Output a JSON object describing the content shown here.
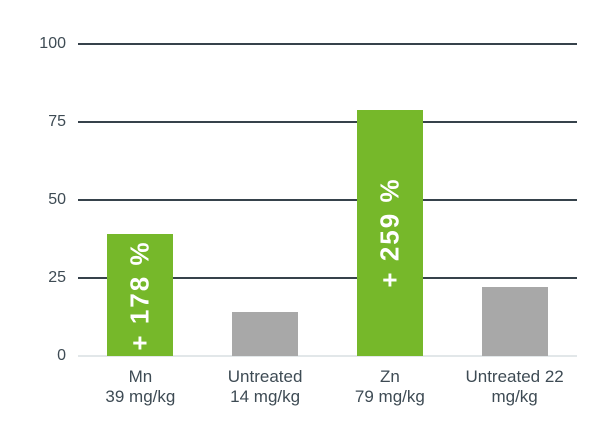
{
  "chart_data": {
    "type": "bar",
    "categories": [
      "Mn\n39 mg/kg",
      "Untreated\n14 mg/kg",
      "Zn\n79 mg/kg",
      "Untreated 22\nmg/kg"
    ],
    "values": [
      39,
      14,
      79,
      22
    ],
    "bar_annotations": [
      "+ 178 %",
      "",
      "+ 259 %",
      ""
    ],
    "bar_color_keys": [
      "green",
      "gray",
      "green",
      "gray"
    ],
    "yticks": [
      100,
      75,
      50,
      25,
      0
    ],
    "ylim": [
      0,
      100
    ],
    "grid": "horizontal",
    "legend": "none"
  },
  "colors": {
    "bar_green": "#76b82a",
    "bar_gray": "#a8a8a8",
    "gridline_dark": "#36424b",
    "baseline_light": "#e2e7e9",
    "axis_text": "#3e4b54",
    "annotation_text": "#ffffff",
    "background": "#ffffff"
  }
}
